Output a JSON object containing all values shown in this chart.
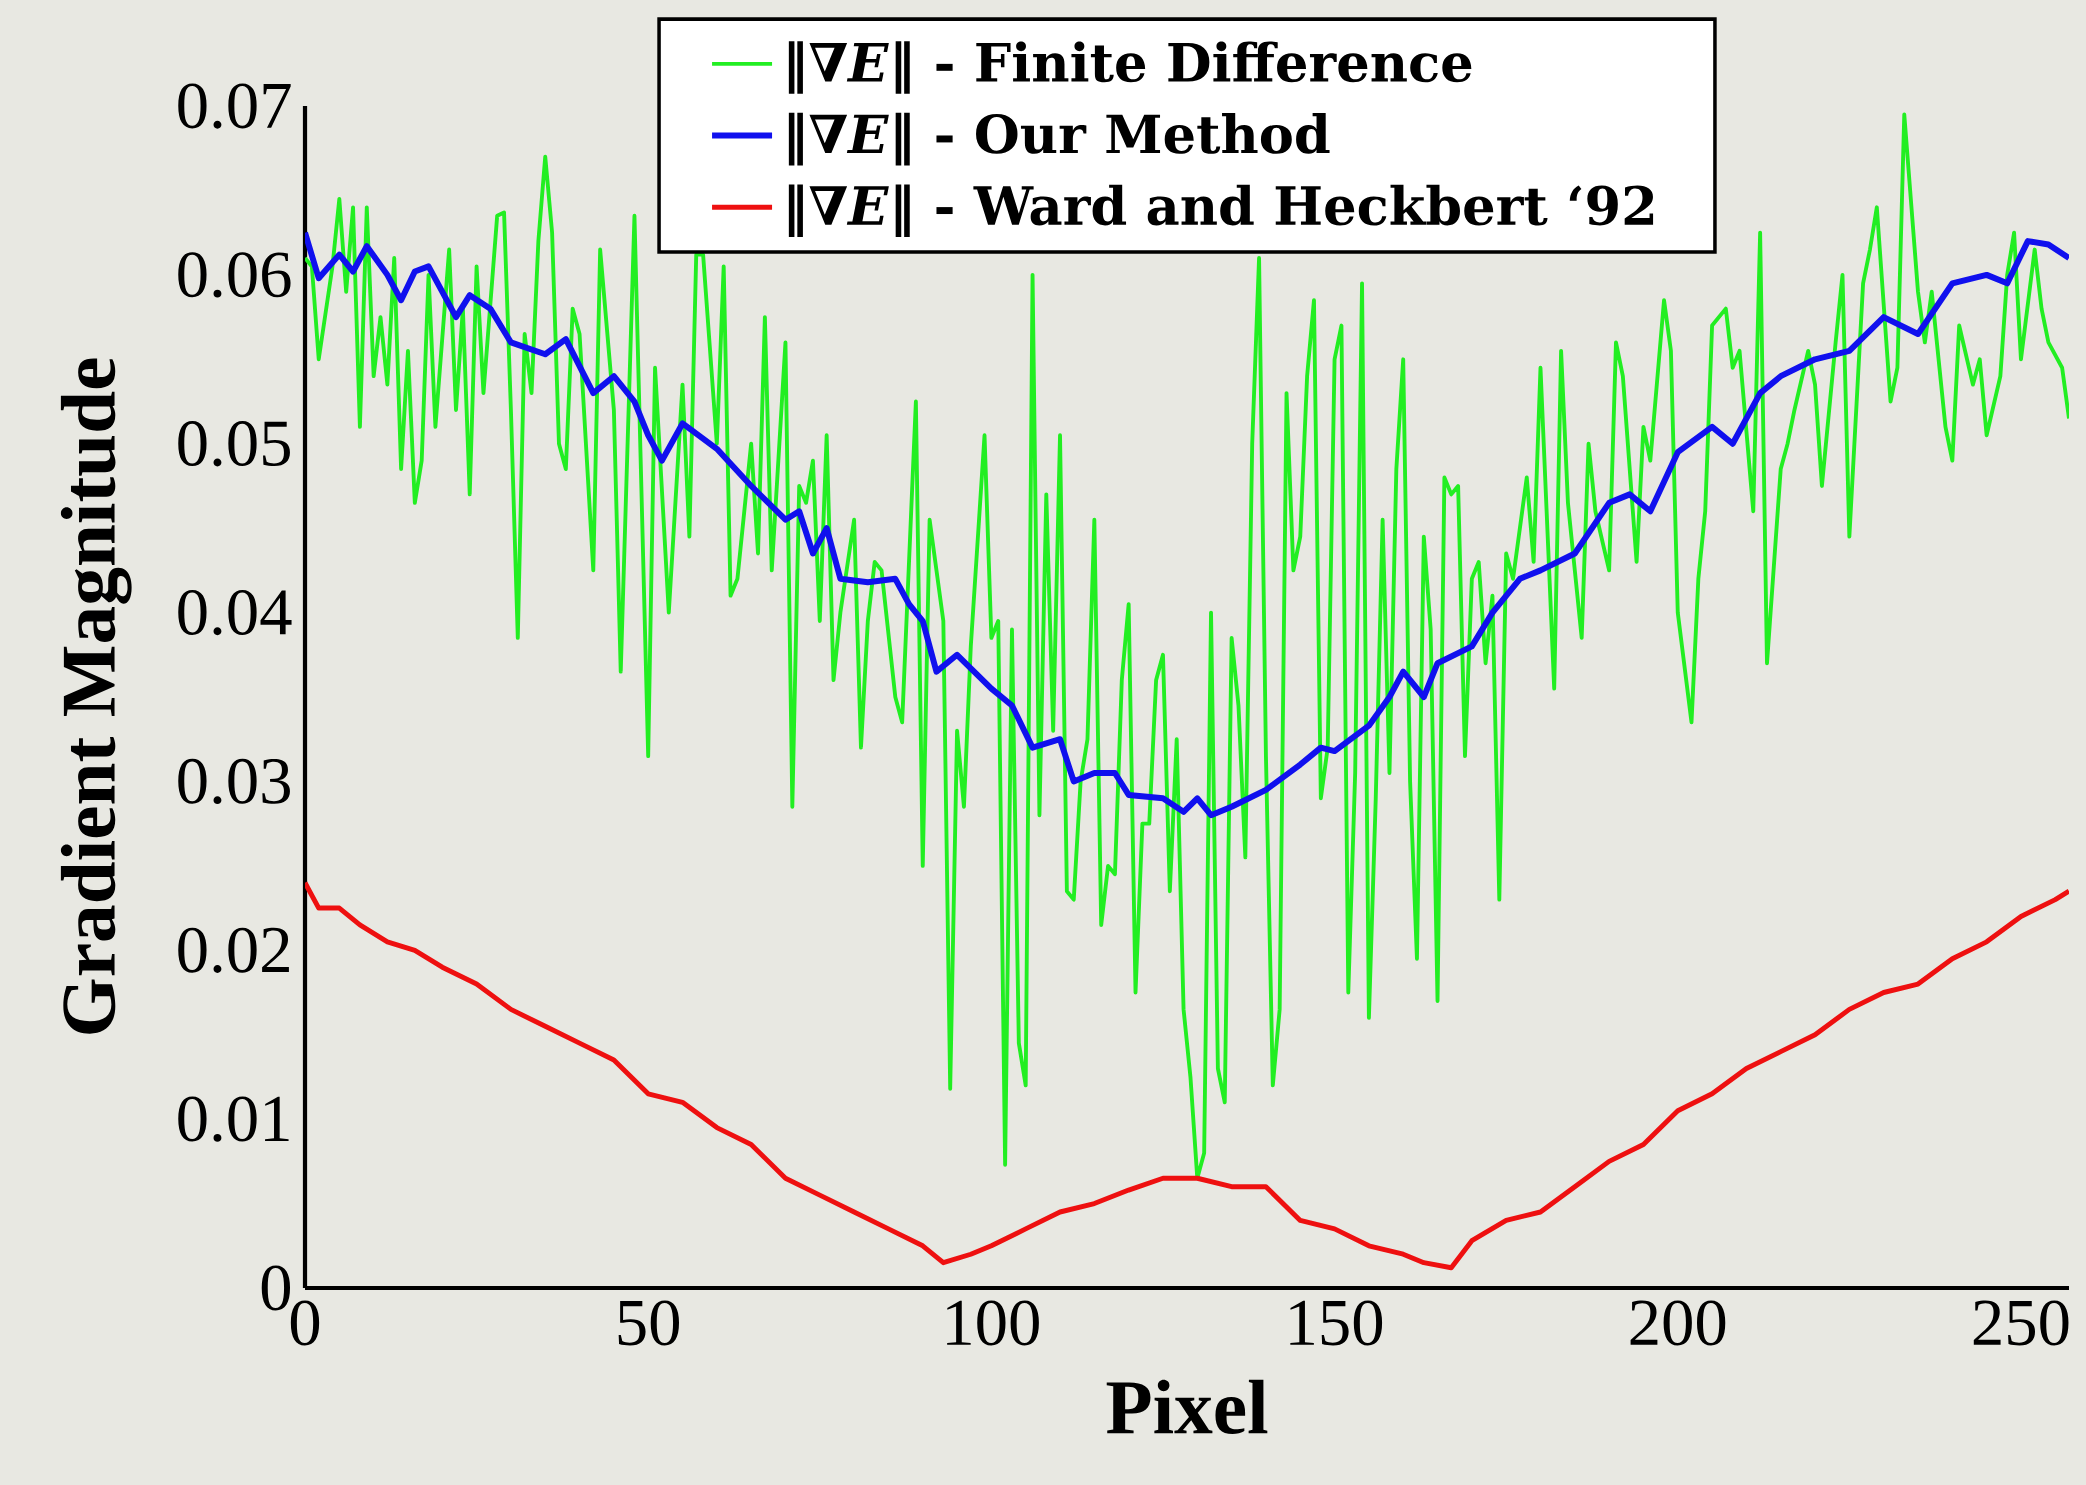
{
  "chart_data": {
    "type": "line",
    "xlabel": "Pixel",
    "ylabel": "Gradient Magnitude",
    "xlim": [
      0,
      257
    ],
    "ylim": [
      0,
      0.07
    ],
    "xticks": [
      0,
      50,
      100,
      150,
      200,
      250
    ],
    "yticks": [
      0,
      0.01,
      0.02,
      0.03,
      0.04,
      0.05,
      0.06,
      0.07
    ],
    "legend": "top",
    "marker": "none",
    "line_style": "solid",
    "series": [
      {
        "name": "‖∇*E*‖ - Finite Difference",
        "color": "#22ee22",
        "x": [
          0,
          1,
          2,
          4,
          5,
          6,
          7,
          8,
          9,
          10,
          11,
          12,
          13,
          14,
          15,
          16,
          17,
          18,
          19,
          21,
          22,
          23,
          24,
          25,
          26,
          28,
          29,
          30,
          31,
          32,
          33,
          34,
          35,
          36,
          37,
          38,
          39,
          40,
          42,
          43,
          45,
          46,
          48,
          50,
          51,
          53,
          55,
          56,
          57,
          58,
          59,
          60,
          61,
          62,
          63,
          65,
          66,
          67,
          68,
          70,
          71,
          72,
          73,
          74,
          75,
          76,
          77,
          78,
          80,
          81,
          82,
          83,
          84,
          86,
          87,
          89,
          90,
          91,
          93,
          94,
          95,
          96,
          97,
          99,
          100,
          101,
          102,
          103,
          104,
          105,
          106,
          107,
          108,
          109,
          110,
          111,
          112,
          113,
          114,
          115,
          116,
          117,
          118,
          119,
          120,
          121,
          122,
          123,
          124,
          125,
          126,
          127,
          128,
          129,
          130,
          131,
          132,
          133,
          134,
          135,
          136,
          137,
          138,
          139,
          140,
          141,
          142,
          143,
          144,
          145,
          146,
          147,
          148,
          149,
          150,
          151,
          152,
          153,
          154,
          155,
          156,
          157,
          158,
          159,
          160,
          161,
          162,
          163,
          164,
          165,
          166,
          167,
          168,
          169,
          170,
          171,
          172,
          173,
          174,
          175,
          176,
          178,
          179,
          180,
          182,
          183,
          184,
          186,
          187,
          188,
          190,
          191,
          192,
          194,
          195,
          196,
          198,
          199,
          200,
          202,
          203,
          204,
          205,
          207,
          208,
          209,
          211,
          212,
          213,
          215,
          216,
          217,
          219,
          220,
          221,
          223,
          224,
          225,
          227,
          228,
          229,
          231,
          232,
          233,
          235,
          236,
          237,
          239,
          240,
          241,
          243,
          244,
          245,
          247,
          248,
          249,
          250,
          252,
          253,
          254,
          256,
          257
        ],
        "values": [
          0.061,
          0.0605,
          0.055,
          0.0605,
          0.0645,
          0.059,
          0.064,
          0.051,
          0.064,
          0.054,
          0.0575,
          0.0535,
          0.061,
          0.0485,
          0.0555,
          0.0465,
          0.049,
          0.06,
          0.051,
          0.0615,
          0.052,
          0.058,
          0.047,
          0.0605,
          0.053,
          0.0635,
          0.0637,
          0.052,
          0.0385,
          0.0565,
          0.053,
          0.062,
          0.067,
          0.0625,
          0.05,
          0.0485,
          0.058,
          0.0565,
          0.0425,
          0.0615,
          0.052,
          0.0365,
          0.0635,
          0.0315,
          0.0545,
          0.04,
          0.0535,
          0.0445,
          0.0612,
          0.0612,
          null,
          0.05,
          0.0605,
          0.041,
          0.042,
          0.05,
          0.0435,
          0.0575,
          0.0425,
          0.056,
          0.0285,
          0.0475,
          0.0465,
          0.049,
          0.0395,
          0.0505,
          0.036,
          0.04,
          0.0455,
          0.032,
          0.0395,
          0.043,
          0.0425,
          0.035,
          0.0335,
          0.0525,
          0.025,
          0.0455,
          0.0395,
          0.0118,
          0.033,
          0.0285,
          0.038,
          0.0505,
          0.0385,
          0.0395,
          0.0073,
          0.039,
          0.0145,
          0.012,
          0.06,
          0.028,
          0.047,
          0.033,
          0.0505,
          0.0235,
          0.023,
          0.03,
          0.0325,
          0.0455,
          0.0215,
          0.025,
          0.0245,
          0.036,
          0.0405,
          0.0175,
          0.0275,
          0.0275,
          0.036,
          0.0375,
          0.0235,
          0.0325,
          0.0165,
          0.0125,
          0.0065,
          0.008,
          0.04,
          0.013,
          0.011,
          0.0385,
          0.0345,
          0.0255,
          0.05,
          0.061,
          0.0315,
          0.012,
          0.0165,
          0.053,
          0.0425,
          0.0445,
          0.054,
          0.0585,
          0.029,
          0.032,
          0.055,
          0.057,
          0.0175,
          0.0305,
          0.0595,
          0.016,
          0.029,
          0.0455,
          0.0305,
          0.0485,
          0.055,
          0.03,
          0.0195,
          0.0445,
          0.039,
          0.017,
          0.048,
          0.047,
          0.0475,
          0.0315,
          0.042,
          0.043,
          0.037,
          0.041,
          0.023,
          0.0435,
          0.042,
          0.048,
          0.043,
          0.0545,
          0.0355,
          0.0555,
          0.0465,
          0.0385,
          0.05,
          0.046,
          0.0425,
          0.056,
          0.054,
          0.043,
          0.051,
          0.049,
          0.0585,
          0.0555,
          0.04,
          0.0335,
          0.042,
          0.046,
          0.057,
          0.058,
          0.0545,
          0.0555,
          0.046,
          0.0625,
          0.037,
          0.0485,
          0.05,
          0.052,
          0.0555,
          0.0535,
          0.0475,
          0.056,
          0.06,
          0.0445,
          0.0595,
          0.0615,
          0.064,
          0.0525,
          0.0545,
          0.0695,
          0.059,
          0.056,
          0.059,
          0.051,
          0.049,
          0.057,
          0.0535,
          0.055,
          0.0505,
          0.054,
          0.06,
          0.0625,
          0.055,
          0.0615,
          0.058,
          0.056,
          0.0545,
          0.0515
        ]
      },
      {
        "name": "‖∇*E*‖ - Our Method",
        "color": "#1010ee",
        "x": [
          0,
          2,
          5,
          7,
          9,
          12,
          14,
          16,
          18,
          22,
          24,
          27,
          30,
          35,
          38,
          42,
          45,
          48,
          50,
          52,
          55,
          60,
          65,
          70,
          72,
          74,
          76,
          78,
          82,
          86,
          88,
          90,
          92,
          95,
          100,
          103,
          106,
          110,
          112,
          115,
          118,
          120,
          125,
          128,
          130,
          132,
          135,
          140,
          145,
          148,
          150,
          155,
          158,
          160,
          163,
          165,
          170,
          173,
          177,
          180,
          185,
          190,
          193,
          196,
          200,
          205,
          208,
          212,
          215,
          220,
          225,
          230,
          235,
          240,
          245,
          248,
          251,
          254,
          257
        ],
        "values": [
          0.0625,
          0.0598,
          0.0612,
          0.0602,
          0.0617,
          0.06,
          0.0585,
          0.0602,
          0.0605,
          0.0575,
          0.0588,
          0.058,
          0.056,
          0.0553,
          0.0562,
          0.053,
          0.054,
          0.0525,
          0.0505,
          0.049,
          0.0512,
          0.0497,
          0.0475,
          0.0455,
          0.046,
          0.0435,
          0.045,
          0.042,
          0.0418,
          0.042,
          0.0405,
          0.0395,
          0.0365,
          0.0375,
          0.0355,
          0.0345,
          0.032,
          0.0325,
          0.03,
          0.0305,
          0.0305,
          0.0292,
          0.029,
          0.0282,
          0.029,
          0.028,
          0.0285,
          0.0295,
          0.031,
          0.032,
          0.0318,
          0.0333,
          0.035,
          0.0365,
          0.035,
          0.037,
          0.038,
          0.04,
          0.042,
          0.0425,
          0.0435,
          0.0465,
          0.047,
          0.046,
          0.0495,
          0.051,
          0.05,
          0.053,
          0.054,
          0.055,
          0.0555,
          0.0575,
          0.0565,
          0.0595,
          0.06,
          0.0595,
          0.062,
          0.0618,
          0.061
        ]
      },
      {
        "name": "‖∇*E*‖ - Ward and Heckbert ‘92",
        "color": "#ee1010",
        "x": [
          0,
          2,
          5,
          8,
          12,
          16,
          20,
          25,
          30,
          35,
          40,
          45,
          50,
          55,
          60,
          65,
          70,
          75,
          80,
          85,
          90,
          93,
          97,
          100,
          105,
          110,
          115,
          120,
          125,
          130,
          135,
          140,
          145,
          150,
          155,
          160,
          163,
          167,
          170,
          175,
          180,
          185,
          190,
          195,
          200,
          205,
          210,
          215,
          220,
          225,
          230,
          235,
          240,
          245,
          250,
          255,
          257
        ],
        "values": [
          0.024,
          0.0225,
          0.0225,
          0.0215,
          0.0205,
          0.02,
          0.019,
          0.018,
          0.0165,
          0.0155,
          0.0145,
          0.0135,
          0.0115,
          0.011,
          0.0095,
          0.0085,
          0.0065,
          0.0055,
          0.0045,
          0.0035,
          0.0025,
          0.0015,
          0.002,
          0.0025,
          0.0035,
          0.0045,
          0.005,
          0.0058,
          0.0065,
          0.0065,
          0.006,
          0.006,
          0.004,
          0.0035,
          0.0025,
          0.002,
          0.0015,
          0.0012,
          0.0028,
          0.004,
          0.0045,
          0.006,
          0.0075,
          0.0085,
          0.0105,
          0.0115,
          0.013,
          0.014,
          0.015,
          0.0165,
          0.0175,
          0.018,
          0.0195,
          0.0205,
          0.022,
          0.023,
          0.0235
        ]
      }
    ]
  }
}
